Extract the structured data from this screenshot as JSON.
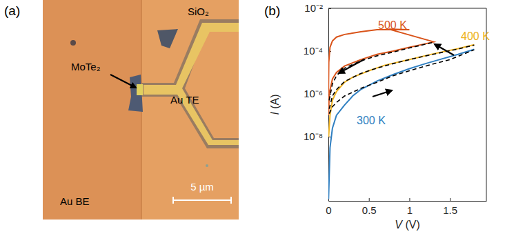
{
  "panel_a": {
    "label": "(a)",
    "texts": {
      "region_top": "SiO₂",
      "flake": "MoTe₂",
      "top_electrode": "Au TE",
      "bottom_electrode": "Au BE",
      "scale_bar": "5 µm"
    }
  },
  "chart_data": {
    "type": "line",
    "title": "(b)",
    "x_label": "V (V)",
    "y_label": "I (A)",
    "log": "y",
    "grid": false,
    "xlim": [
      0,
      1.95
    ],
    "ylim": [
      1e-11,
      0.01
    ],
    "xticks": [
      0,
      0.5,
      1,
      1.5
    ],
    "yticks": [
      {
        "value": 0.01,
        "label": "10⁻²"
      },
      {
        "value": 0.0001,
        "label": "10⁻⁴"
      },
      {
        "value": 1e-06,
        "label": "10⁻⁶"
      },
      {
        "value": 1e-08,
        "label": "10⁻⁸"
      }
    ],
    "series": [
      {
        "name": "300 K",
        "color": "#2f7fc1",
        "line_style": "solid",
        "x": [
          0.002,
          0.02,
          0.05,
          0.1,
          0.2,
          0.3,
          0.4,
          0.5,
          0.6,
          0.8,
          1.0,
          1.2,
          1.4,
          1.6,
          1.8
        ],
        "values": [
          1.2e-11,
          3e-09,
          2.5e-08,
          1e-07,
          3e-07,
          8e-07,
          1.6e-06,
          2.5e-06,
          4e-06,
          8e-06,
          1.5e-05,
          2.6e-05,
          4.3e-05,
          7e-05,
          0.00012
        ]
      },
      {
        "color": "#000000",
        "line_style": "dashed",
        "x": [
          0.01,
          0.05,
          0.1,
          0.2,
          0.4,
          0.6,
          0.8,
          1.0,
          1.2,
          1.5,
          1.8
        ],
        "values": [
          1.2e-07,
          2.5e-07,
          4e-07,
          8e-07,
          1.8e-06,
          3.5e-06,
          7e-06,
          1.2e-05,
          2e-05,
          4e-05,
          0.000115
        ]
      },
      {
        "name": "400 K",
        "color": "#edb120",
        "line_style": "solid",
        "x": [
          0.003,
          0.02,
          0.05,
          0.1,
          0.2,
          0.3,
          0.5,
          0.7,
          1.0,
          1.3,
          1.6,
          1.8
        ],
        "values": [
          1e-08,
          1e-07,
          5e-07,
          1.3e-06,
          3.5e-06,
          6e-06,
          1.2e-05,
          2.2e-05,
          4e-05,
          7.5e-05,
          0.00013,
          0.0002
        ]
      },
      {
        "color": "#000000",
        "line_style": "dashed",
        "x": [
          0.01,
          0.05,
          0.1,
          0.2,
          0.4,
          0.6,
          0.8,
          1.0,
          1.3,
          1.6,
          1.8
        ],
        "values": [
          2e-07,
          8e-07,
          1.6e-06,
          3.8e-06,
          9e-06,
          1.6e-05,
          2.6e-05,
          4e-05,
          7.2e-05,
          0.000125,
          0.00019
        ]
      },
      {
        "name": "500 K",
        "color": "#d95319",
        "line_style": "solid",
        "x": [
          0.002,
          0.01,
          0.05,
          0.1,
          0.2,
          0.4,
          0.6,
          0.8,
          1.0,
          1.2,
          1.3,
          0.75,
          1.0,
          0.6,
          0.4,
          0.2,
          0.1,
          0.05,
          0.02,
          0.005,
          0.001
        ],
        "values": [
          1e-07,
          1e-06,
          5e-06,
          1e-05,
          2e-05,
          4e-05,
          7e-05,
          0.0001,
          0.00015,
          0.00022,
          0.00027,
          0.00105,
          0.001,
          0.001,
          0.0008,
          0.0006,
          0.00045,
          0.0003,
          0.00015,
          3e-05,
          1e-06
        ]
      },
      {
        "color": "#000000",
        "line_style": "dashed",
        "x": [
          0.01,
          0.05,
          0.1,
          0.2,
          0.4,
          0.6,
          0.8,
          1.0,
          1.2,
          1.3
        ],
        "values": [
          5e-07,
          3e-06,
          7e-06,
          1.6e-05,
          3.5e-05,
          6e-05,
          9e-05,
          0.00014,
          0.00021,
          0.00026
        ]
      }
    ]
  }
}
